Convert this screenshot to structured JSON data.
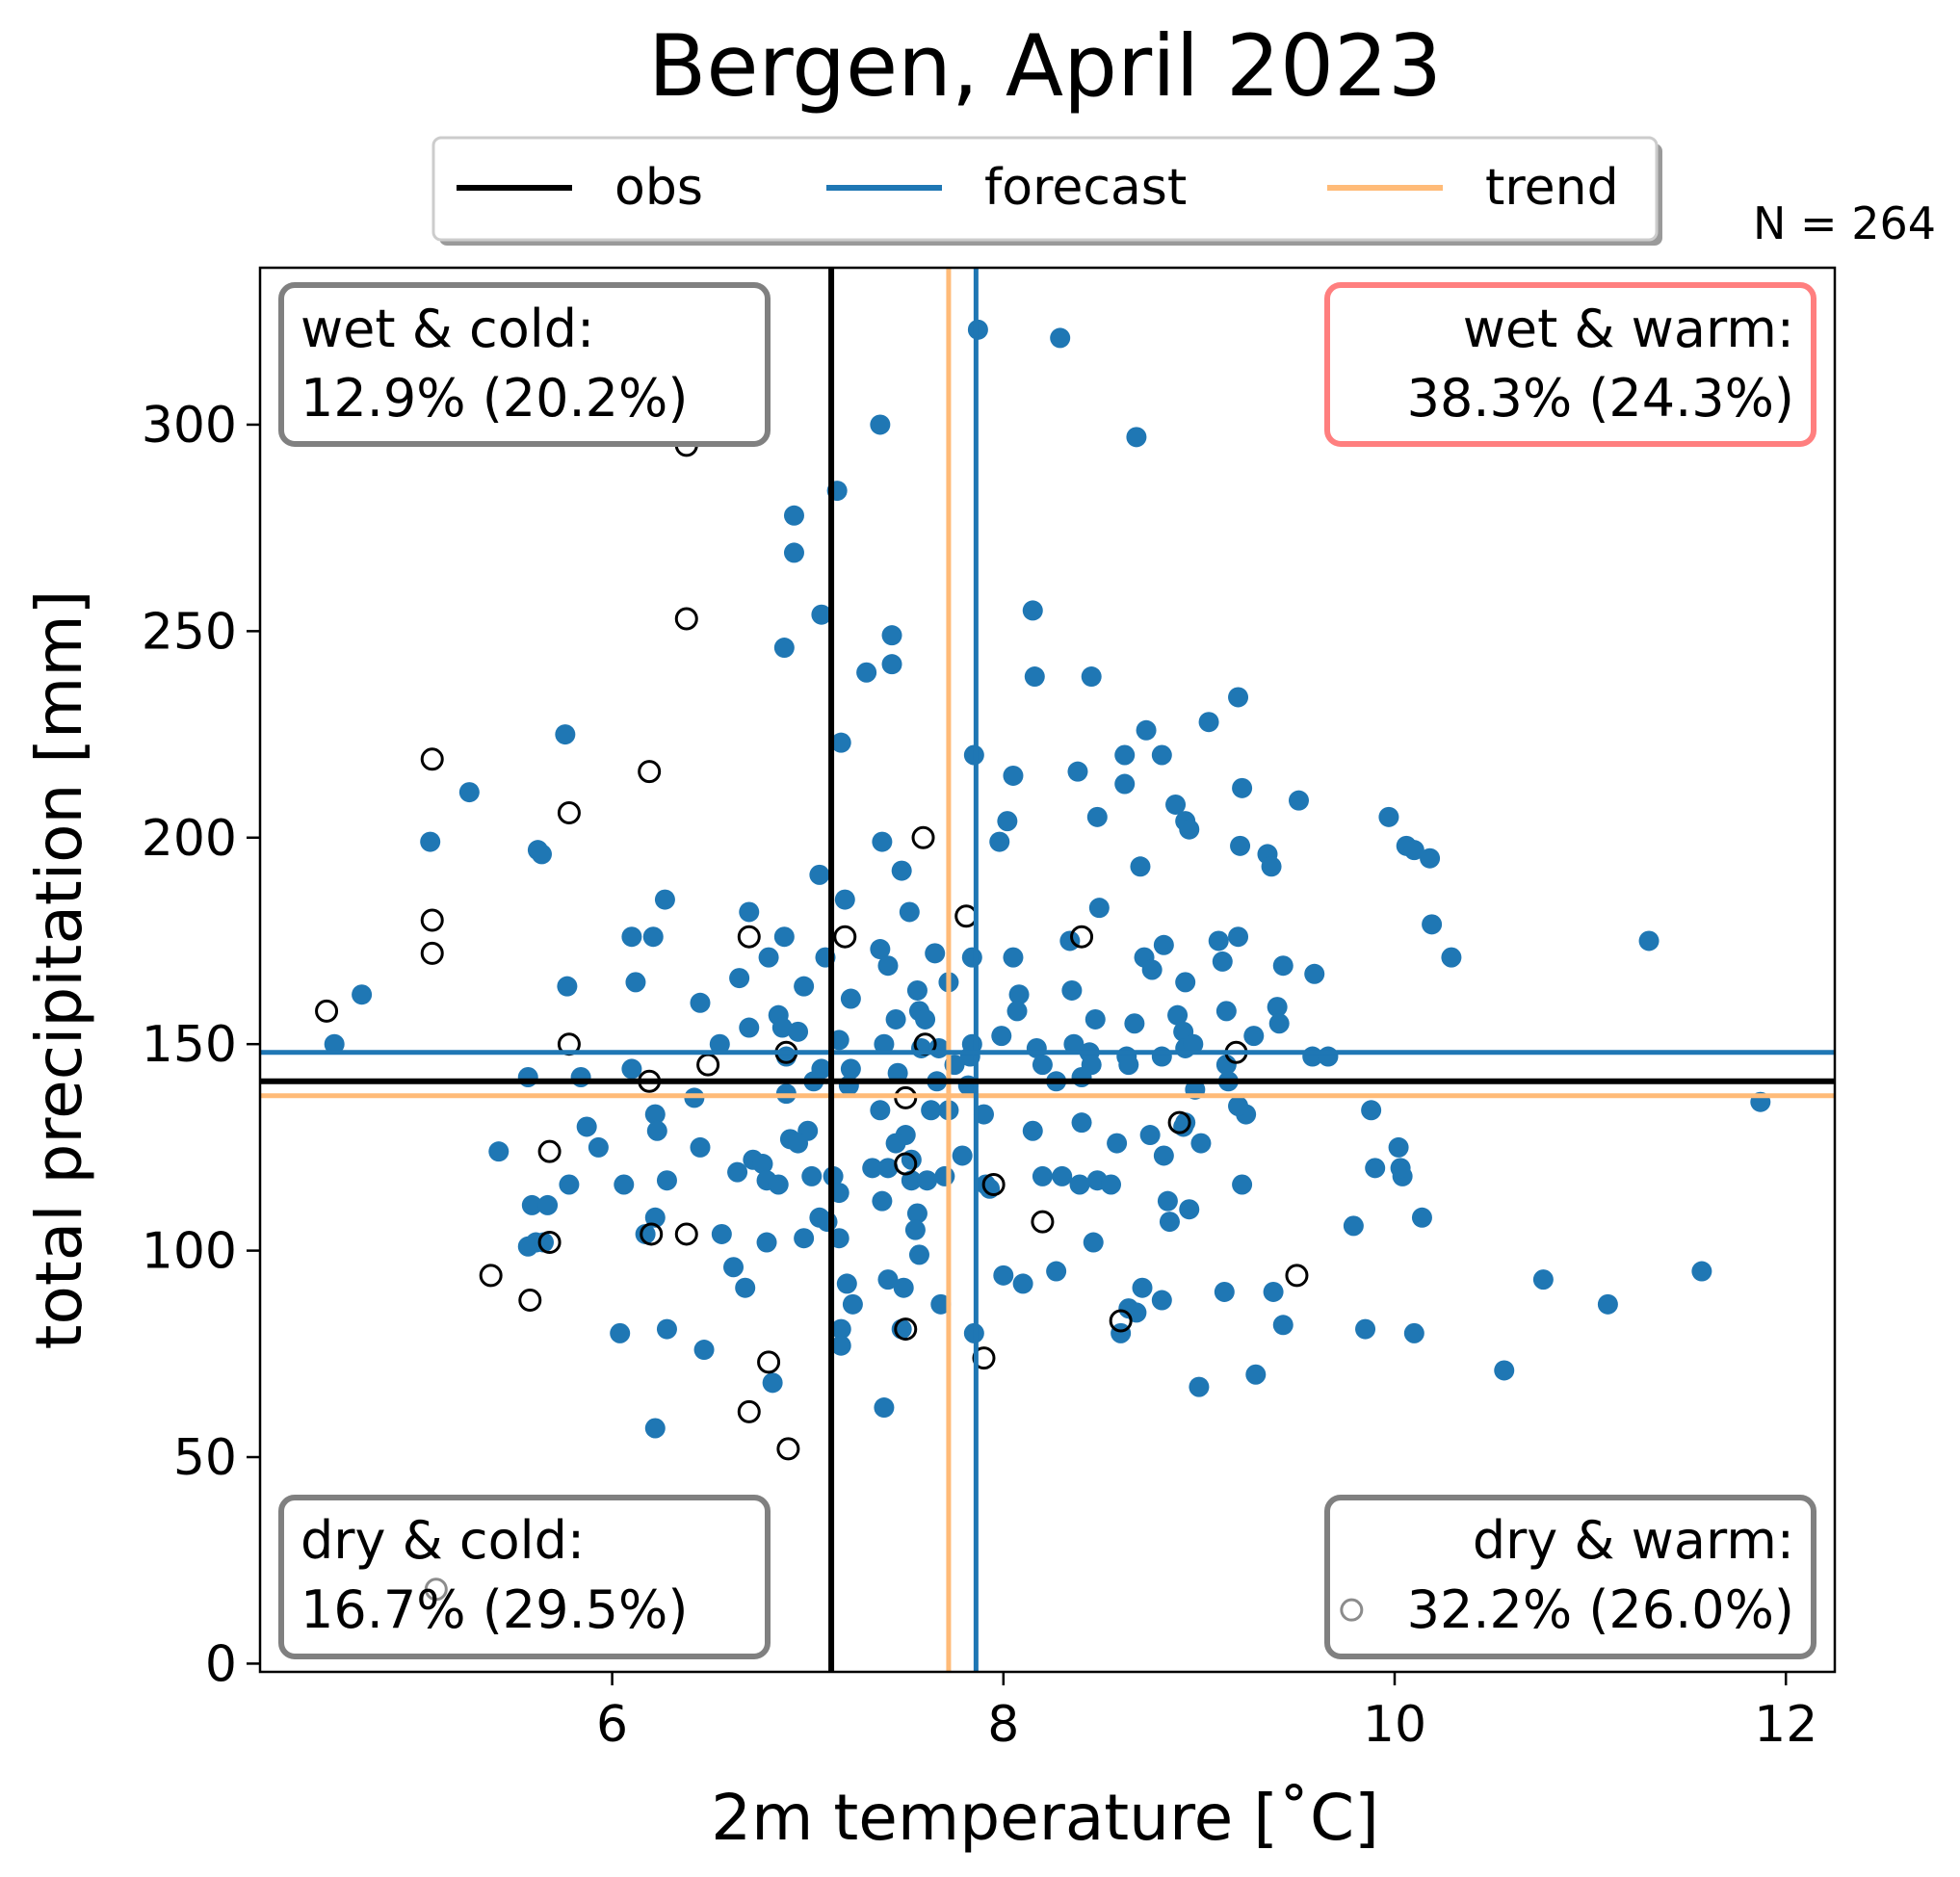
{
  "chart_data": {
    "type": "scatter",
    "title": "Bergen, April 2023",
    "xlabel": "2m temperature [˚C]",
    "ylabel": "total precipitation [mm]",
    "xlim": [
      4.2,
      12.25
    ],
    "ylim": [
      -2,
      338
    ],
    "xticks": [
      6,
      8,
      10,
      12
    ],
    "yticks": [
      0,
      50,
      100,
      150,
      200,
      250,
      300
    ],
    "grid": false,
    "sample_size_label": "N = 264",
    "legend": {
      "placement": "top-center, above plot",
      "entries": [
        {
          "label": "obs",
          "color": "#000000"
        },
        {
          "label": "forecast",
          "color": "#1f77b4"
        },
        {
          "label": "trend",
          "color": "#ffbb78"
        }
      ]
    },
    "reference_lines": {
      "obs": {
        "x": 7.12,
        "y": 141,
        "color": "#000000"
      },
      "forecast": {
        "x": 7.86,
        "y": 148,
        "color": "#1f77b4"
      },
      "trend": {
        "x": 7.72,
        "y": 137.5,
        "color": "#ffbb78"
      }
    },
    "quadrant_boxes": [
      {
        "id": "wet-cold",
        "position": "top-left",
        "line1": "wet & cold:",
        "line2": "12.9% (20.2%)",
        "border": "#808080"
      },
      {
        "id": "wet-warm",
        "position": "top-right",
        "line1": "wet & warm:",
        "line2": "38.3% (24.3%)",
        "border": "#ff7f7f"
      },
      {
        "id": "dry-cold",
        "position": "bottom-left",
        "line1": "dry & cold:",
        "line2": "16.7% (29.5%)",
        "border": "#808080"
      },
      {
        "id": "dry-warm",
        "position": "bottom-right",
        "line1": "dry & warm:",
        "line2": "32.2% (26.0%)",
        "border": "#808080"
      }
    ],
    "series": [
      {
        "name": "forecast",
        "marker": "filled-circle",
        "color": "#1f77b4",
        "points": [
          [
            7.87,
            323
          ],
          [
            8.29,
            321
          ],
          [
            7.37,
            300
          ],
          [
            8.68,
            297
          ],
          [
            7.15,
            284
          ],
          [
            6.93,
            278
          ],
          [
            6.93,
            269
          ],
          [
            7.07,
            254
          ],
          [
            8.15,
            255
          ],
          [
            7.43,
            249
          ],
          [
            6.88,
            246
          ],
          [
            7.3,
            240
          ],
          [
            7.43,
            242
          ],
          [
            8.16,
            239
          ],
          [
            8.45,
            239
          ],
          [
            9.2,
            234
          ],
          [
            7.17,
            223
          ],
          [
            5.76,
            225
          ],
          [
            8.73,
            226
          ],
          [
            9.05,
            228
          ],
          [
            7.85,
            220
          ],
          [
            8.62,
            220
          ],
          [
            8.81,
            220
          ],
          [
            8.05,
            215
          ],
          [
            8.38,
            216
          ],
          [
            8.62,
            213
          ],
          [
            9.22,
            212
          ],
          [
            5.27,
            211
          ],
          [
            8.88,
            208
          ],
          [
            8.93,
            204
          ],
          [
            8.95,
            202
          ],
          [
            8.48,
            205
          ],
          [
            8.02,
            204
          ],
          [
            9.51,
            209
          ],
          [
            9.97,
            205
          ],
          [
            5.07,
            199
          ],
          [
            5.62,
            197
          ],
          [
            5.64,
            196
          ],
          [
            7.38,
            199
          ],
          [
            7.98,
            199
          ],
          [
            10.06,
            198
          ],
          [
            10.1,
            197
          ],
          [
            9.21,
            198
          ],
          [
            9.35,
            196
          ],
          [
            9.37,
            193
          ],
          [
            10.18,
            195
          ],
          [
            7.06,
            191
          ],
          [
            7.48,
            192
          ],
          [
            8.7,
            193
          ],
          [
            7.19,
            185
          ],
          [
            6.27,
            185
          ],
          [
            6.7,
            182
          ],
          [
            7.52,
            182
          ],
          [
            8.49,
            183
          ],
          [
            6.1,
            176
          ],
          [
            6.21,
            176
          ],
          [
            6.88,
            176
          ],
          [
            8.34,
            175
          ],
          [
            8.82,
            174
          ],
          [
            9.1,
            175
          ],
          [
            9.2,
            176
          ],
          [
            10.19,
            179
          ],
          [
            11.3,
            175
          ],
          [
            10.29,
            171
          ],
          [
            7.37,
            173
          ],
          [
            7.65,
            172
          ],
          [
            6.8,
            171
          ],
          [
            7.09,
            171
          ],
          [
            7.41,
            169
          ],
          [
            7.84,
            171
          ],
          [
            8.05,
            171
          ],
          [
            8.72,
            171
          ],
          [
            8.76,
            168
          ],
          [
            9.12,
            170
          ],
          [
            9.43,
            169
          ],
          [
            9.59,
            167
          ],
          [
            4.72,
            162
          ],
          [
            5.77,
            164
          ],
          [
            6.12,
            165
          ],
          [
            6.65,
            166
          ],
          [
            6.98,
            164
          ],
          [
            7.72,
            165
          ],
          [
            8.08,
            162
          ],
          [
            8.35,
            163
          ],
          [
            8.93,
            165
          ],
          [
            7.56,
            163
          ],
          [
            7.22,
            161
          ],
          [
            7.57,
            158
          ],
          [
            8.07,
            158
          ],
          [
            9.14,
            158
          ],
          [
            9.4,
            159
          ],
          [
            6.45,
            160
          ],
          [
            6.85,
            157
          ],
          [
            7.6,
            156
          ],
          [
            6.87,
            154
          ],
          [
            6.95,
            153
          ],
          [
            6.7,
            154
          ],
          [
            7.45,
            156
          ],
          [
            8.47,
            156
          ],
          [
            8.67,
            155
          ],
          [
            8.89,
            157
          ],
          [
            8.92,
            153
          ],
          [
            4.58,
            150
          ],
          [
            7.16,
            151
          ],
          [
            7.39,
            150
          ],
          [
            7.84,
            150
          ],
          [
            7.99,
            152
          ],
          [
            9.28,
            152
          ],
          [
            9.41,
            155
          ],
          [
            6.89,
            147
          ],
          [
            6.55,
            150
          ],
          [
            7.58,
            149
          ],
          [
            7.67,
            149
          ],
          [
            8.17,
            149
          ],
          [
            8.36,
            150
          ],
          [
            8.93,
            149
          ],
          [
            7.83,
            147
          ],
          [
            8.44,
            148
          ],
          [
            8.63,
            147
          ],
          [
            8.81,
            147
          ],
          [
            8.97,
            150
          ],
          [
            9.58,
            147
          ],
          [
            9.66,
            147
          ],
          [
            5.57,
            142
          ],
          [
            5.84,
            142
          ],
          [
            6.1,
            144
          ],
          [
            7.07,
            144
          ],
          [
            7.22,
            144
          ],
          [
            7.46,
            143
          ],
          [
            7.75,
            145
          ],
          [
            8.2,
            145
          ],
          [
            8.27,
            141
          ],
          [
            8.45,
            145
          ],
          [
            8.64,
            145
          ],
          [
            9.14,
            145
          ],
          [
            6.42,
            137
          ],
          [
            6.89,
            138
          ],
          [
            7.03,
            141
          ],
          [
            7.21,
            140
          ],
          [
            7.66,
            141
          ],
          [
            7.82,
            140
          ],
          [
            8.4,
            142
          ],
          [
            8.98,
            139
          ],
          [
            9.15,
            141
          ],
          [
            11.87,
            136
          ],
          [
            5.87,
            130
          ],
          [
            6.22,
            133
          ],
          [
            6.23,
            129
          ],
          [
            7.72,
            134
          ],
          [
            7.9,
            133
          ],
          [
            8.4,
            131
          ],
          [
            8.93,
            131
          ],
          [
            9.24,
            133
          ],
          [
            9.88,
            134
          ],
          [
            7.63,
            134
          ],
          [
            7.37,
            134
          ],
          [
            8.75,
            128
          ],
          [
            8.92,
            130
          ],
          [
            9.01,
            126
          ],
          [
            6.91,
            127
          ],
          [
            7.0,
            129
          ],
          [
            7.5,
            128
          ],
          [
            8.15,
            129
          ],
          [
            8.58,
            126
          ],
          [
            9.2,
            135
          ],
          [
            6.45,
            125
          ],
          [
            6.95,
            126
          ],
          [
            7.45,
            126
          ],
          [
            5.42,
            124
          ],
          [
            5.93,
            125
          ],
          [
            6.72,
            122
          ],
          [
            6.77,
            121
          ],
          [
            7.33,
            120
          ],
          [
            7.53,
            122
          ],
          [
            7.79,
            123
          ],
          [
            8.82,
            123
          ],
          [
            7.02,
            118
          ],
          [
            7.13,
            118
          ],
          [
            7.41,
            120
          ],
          [
            8.2,
            118
          ],
          [
            8.3,
            118
          ],
          [
            8.48,
            117
          ],
          [
            8.55,
            116
          ],
          [
            6.28,
            117
          ],
          [
            6.64,
            119
          ],
          [
            6.79,
            117
          ],
          [
            6.85,
            116
          ],
          [
            5.78,
            116
          ],
          [
            6.06,
            116
          ],
          [
            7.53,
            117
          ],
          [
            7.61,
            117
          ],
          [
            7.7,
            118
          ],
          [
            8.39,
            116
          ],
          [
            5.59,
            111
          ],
          [
            5.67,
            111
          ],
          [
            7.93,
            115
          ],
          [
            7.16,
            114
          ],
          [
            7.38,
            112
          ],
          [
            9.22,
            116
          ],
          [
            8.84,
            112
          ],
          [
            8.95,
            110
          ],
          [
            6.22,
            108
          ],
          [
            7.06,
            108
          ],
          [
            7.56,
            109
          ],
          [
            7.55,
            105
          ],
          [
            7.91,
            116
          ],
          [
            7.1,
            107
          ],
          [
            8.85,
            107
          ],
          [
            10.14,
            108
          ],
          [
            9.9,
            120
          ],
          [
            10.02,
            125
          ],
          [
            10.04,
            118
          ],
          [
            9.79,
            106
          ],
          [
            10.03,
            120
          ],
          [
            5.61,
            102
          ],
          [
            5.57,
            101
          ],
          [
            5.65,
            102
          ],
          [
            6.17,
            104
          ],
          [
            6.56,
            104
          ],
          [
            6.62,
            96
          ],
          [
            6.68,
            91
          ],
          [
            6.79,
            102
          ],
          [
            6.98,
            103
          ],
          [
            7.16,
            103
          ],
          [
            7.57,
            99
          ],
          [
            8.0,
            94
          ],
          [
            8.1,
            92
          ],
          [
            8.27,
            95
          ],
          [
            8.46,
            102
          ],
          [
            7.41,
            93
          ],
          [
            7.49,
            91
          ],
          [
            7.2,
            92
          ],
          [
            7.23,
            87
          ],
          [
            7.68,
            87
          ],
          [
            8.64,
            86
          ],
          [
            8.71,
            91
          ],
          [
            8.81,
            88
          ],
          [
            8.68,
            85
          ],
          [
            9.13,
            90
          ],
          [
            9.38,
            90
          ],
          [
            9.43,
            82
          ],
          [
            9.85,
            81
          ],
          [
            10.1,
            80
          ],
          [
            10.76,
            93
          ],
          [
            11.09,
            87
          ],
          [
            11.57,
            95
          ],
          [
            6.04,
            80
          ],
          [
            6.28,
            81
          ],
          [
            7.17,
            81
          ],
          [
            7.17,
            77
          ],
          [
            7.48,
            81
          ],
          [
            7.85,
            80
          ],
          [
            6.47,
            76
          ],
          [
            6.82,
            68
          ],
          [
            9.0,
            67
          ],
          [
            9.29,
            70
          ],
          [
            10.56,
            71
          ],
          [
            6.22,
            57
          ],
          [
            7.39,
            62
          ],
          [
            8.6,
            80
          ]
        ]
      },
      {
        "name": "obs",
        "marker": "open-circle",
        "color": "#000000",
        "points": [
          [
            6.38,
            295
          ],
          [
            6.38,
            253
          ],
          [
            5.08,
            219
          ],
          [
            6.19,
            216
          ],
          [
            5.78,
            206
          ],
          [
            7.59,
            200
          ],
          [
            5.08,
            180
          ],
          [
            5.08,
            172
          ],
          [
            7.81,
            181
          ],
          [
            6.7,
            176
          ],
          [
            7.19,
            176
          ],
          [
            8.4,
            176
          ],
          [
            4.54,
            158
          ],
          [
            5.78,
            150
          ],
          [
            7.6,
            150
          ],
          [
            6.89,
            148
          ],
          [
            9.19,
            148
          ],
          [
            6.49,
            145
          ],
          [
            6.19,
            141
          ],
          [
            7.5,
            137
          ],
          [
            8.9,
            131
          ],
          [
            5.68,
            124
          ],
          [
            7.5,
            121
          ],
          [
            7.95,
            116
          ],
          [
            8.2,
            107
          ],
          [
            6.2,
            104
          ],
          [
            6.38,
            104
          ],
          [
            5.68,
            102
          ],
          [
            5.38,
            94
          ],
          [
            9.5,
            94
          ],
          [
            5.58,
            88
          ],
          [
            8.6,
            83
          ],
          [
            7.5,
            81
          ],
          [
            7.9,
            74
          ],
          [
            6.8,
            73
          ],
          [
            6.7,
            61
          ],
          [
            6.9,
            52
          ],
          [
            5.1,
            18
          ],
          [
            9.78,
            13
          ]
        ]
      }
    ]
  }
}
